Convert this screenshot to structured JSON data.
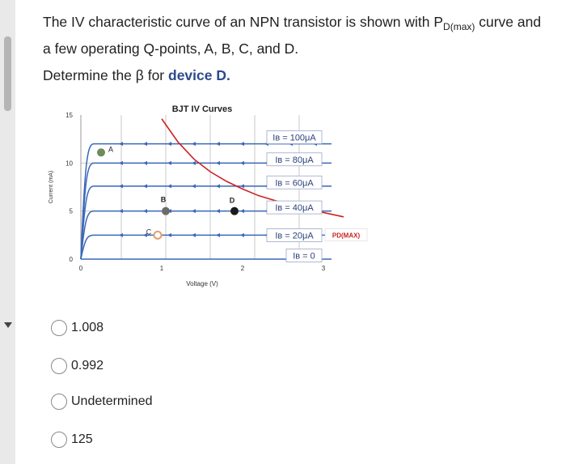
{
  "question": {
    "text_before": "The IV characteristic curve of an NPN transistor is shown with P",
    "subscript": "D(max)",
    "text_after": " curve and a few operating Q-points, A, B, C, and D.",
    "prompt_before": "Determine the β for ",
    "prompt_device": "device D."
  },
  "chart_data": {
    "type": "line",
    "title": "BJT IV Curves",
    "xlabel": "Voltage (V)",
    "ylabel": "Current (mA)",
    "xlim": [
      0,
      3.1
    ],
    "ylim": [
      0,
      15
    ],
    "x_ticks": [
      "0",
      "1",
      "2",
      "3"
    ],
    "y_ticks": [
      "0",
      "5",
      "10",
      "15"
    ],
    "x": [
      0,
      0.2,
      0.5,
      0.8,
      1.1,
      1.4,
      1.7,
      2.0,
      2.3,
      2.6,
      2.9,
      3.1
    ],
    "series": [
      {
        "name": "IB = 100μA",
        "label": "Iʙ = 100μA",
        "level": 12.0,
        "values": [
          0,
          12.0,
          12.0,
          12.0,
          12.0,
          12.0,
          12.0,
          12.0,
          12.0,
          12.0,
          12.0,
          12.0
        ]
      },
      {
        "name": "IB = 80μA",
        "label": "Iʙ = 80μA",
        "level": 10.0,
        "values": [
          0,
          10.0,
          10.0,
          10.0,
          10.0,
          10.0,
          10.0,
          10.0,
          10.0,
          10.0,
          10.0,
          10.0
        ]
      },
      {
        "name": "IB = 60μA",
        "label": "Iʙ = 60μA",
        "level": 7.6,
        "values": [
          0,
          7.6,
          7.6,
          7.6,
          7.6,
          7.6,
          7.6,
          7.6,
          7.6,
          7.6,
          7.6,
          7.6
        ]
      },
      {
        "name": "IB = 40μA",
        "label": "Iʙ = 40μA",
        "level": 5.0,
        "values": [
          0,
          5.0,
          5.0,
          5.0,
          5.0,
          5.0,
          5.0,
          5.0,
          5.0,
          5.0,
          5.0,
          5.0
        ]
      },
      {
        "name": "IB = 20μA",
        "label": "Iʙ = 20μA",
        "level": 2.5,
        "values": [
          0,
          2.5,
          2.5,
          2.5,
          2.5,
          2.5,
          2.5,
          2.5,
          2.5,
          2.5,
          2.5,
          2.5
        ]
      },
      {
        "name": "IB = 0",
        "label": "Iʙ = 0",
        "level": 0.1,
        "values": [
          0,
          0.1,
          0.1,
          0.1,
          0.1,
          0.1,
          0.1,
          0.1,
          0.1,
          0.1,
          0.1,
          0.1
        ]
      }
    ],
    "pdmax_curve": {
      "label": "PD(MAX)",
      "x": [
        1.0,
        1.2,
        1.4,
        1.6,
        1.8,
        2.0,
        2.2,
        2.4,
        2.6,
        2.8,
        3.0,
        3.25
      ],
      "y": [
        14.6,
        12.2,
        10.4,
        9.1,
        8.1,
        7.3,
        6.6,
        6.1,
        5.6,
        5.2,
        4.85,
        4.4
      ]
    },
    "points": [
      {
        "label": "A",
        "x": 0.25,
        "y": 11.1,
        "color": "#6c8c5a"
      },
      {
        "label": "B",
        "x": 1.05,
        "y": 5.0,
        "color": "#6b6b6b"
      },
      {
        "label": "C",
        "x": 0.95,
        "y": 2.5,
        "color": "#e0a070"
      },
      {
        "label": "D",
        "x": 1.9,
        "y": 5.0,
        "color": "#1a1a1a"
      }
    ],
    "grid": true,
    "colors": {
      "ib_curves": "#3a68b8",
      "pdmax": "#cc2222",
      "grid": "#c8c8c8"
    }
  },
  "options": [
    {
      "label": "1.008"
    },
    {
      "label": "0.992"
    },
    {
      "label": "Undetermined"
    },
    {
      "label": "125"
    }
  ]
}
